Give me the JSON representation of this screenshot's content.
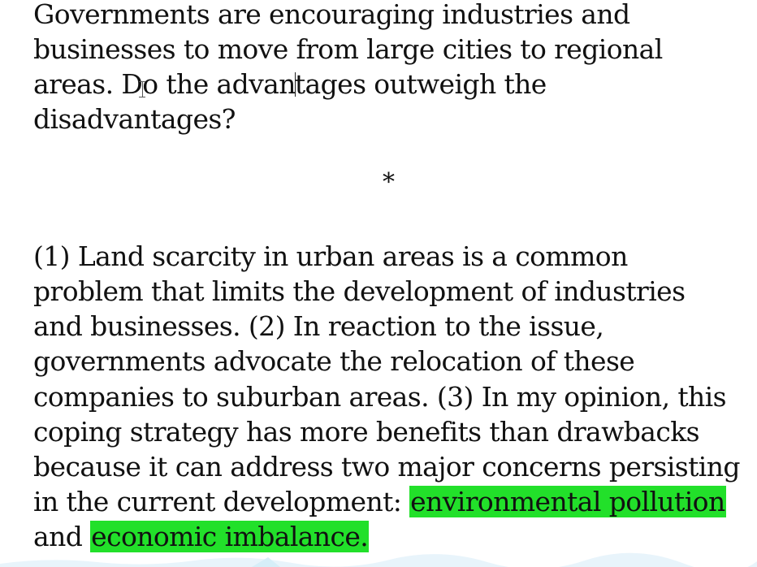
{
  "prompt": {
    "lines": [
      "Governments are encouraging industries and",
      "businesses to move from large cities to regional",
      "disadvantages?"
    ],
    "line3_before_cursor": "areas. Do the advan",
    "line3_after_cursor": "tages outweigh the"
  },
  "separator": "*",
  "essay": {
    "lines": [
      "(1) Land scarcity in urban areas is a common",
      "problem that limits the development of industries",
      "and businesses. (2) In reaction to the issue,",
      "governments advocate the relocation of these",
      "companies to suburban areas. (3) In my opinion, this",
      "coping strategy has more benefits than drawbacks",
      "because it can address two major concerns persisting"
    ],
    "line8_prefix": "in the current development: ",
    "line8_highlight": "environmental pollution",
    "line9_prefix": "and ",
    "line9_highlight": "economic imbalance."
  },
  "colors": {
    "highlight": "#22e02a",
    "text": "#111111",
    "background": "#ffffff"
  }
}
